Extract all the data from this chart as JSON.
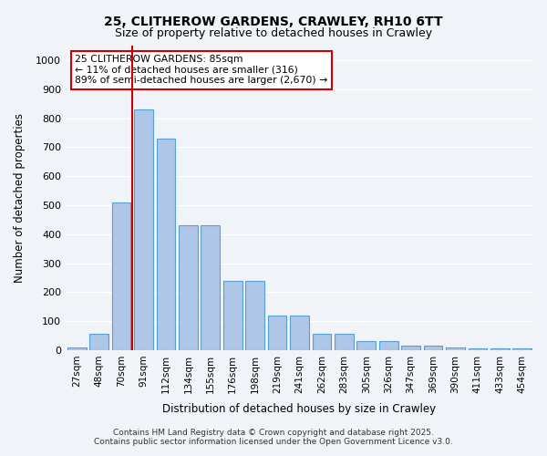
{
  "title1": "25, CLITHEROW GARDENS, CRAWLEY, RH10 6TT",
  "title2": "Size of property relative to detached houses in Crawley",
  "xlabel": "Distribution of detached houses by size in Crawley",
  "ylabel": "Number of detached properties",
  "annotation_line1": "25 CLITHEROW GARDENS: 85sqm",
  "annotation_line2": "← 11% of detached houses are smaller (316)",
  "annotation_line3": "89% of semi-detached houses are larger (2,670) →",
  "footer1": "Contains HM Land Registry data © Crown copyright and database right 2025.",
  "footer2": "Contains public sector information licensed under the Open Government Licence v3.0.",
  "categories": [
    "27sqm",
    "48sqm",
    "70sqm",
    "91sqm",
    "112sqm",
    "134sqm",
    "155sqm",
    "176sqm",
    "198sqm",
    "219sqm",
    "241sqm",
    "262sqm",
    "283sqm",
    "305sqm",
    "326sqm",
    "347sqm",
    "369sqm",
    "390sqm",
    "411sqm",
    "433sqm",
    "454sqm"
  ],
  "values": [
    10,
    55,
    510,
    830,
    730,
    430,
    430,
    240,
    240,
    120,
    120,
    55,
    55,
    30,
    30,
    15,
    15,
    10,
    5,
    5,
    5
  ],
  "bar_color": "#aec6e8",
  "bar_edge_color": "#5a9fd4",
  "property_line_x": 3,
  "ylim": [
    0,
    1050
  ],
  "yticks": [
    0,
    100,
    200,
    300,
    400,
    500,
    600,
    700,
    800,
    900,
    1000
  ],
  "background_color": "#f0f4f8",
  "grid_color": "#ffffff",
  "annotation_box_color": "#ffffff",
  "annotation_box_edge": "#cc0000",
  "property_line_color": "#cc0000"
}
